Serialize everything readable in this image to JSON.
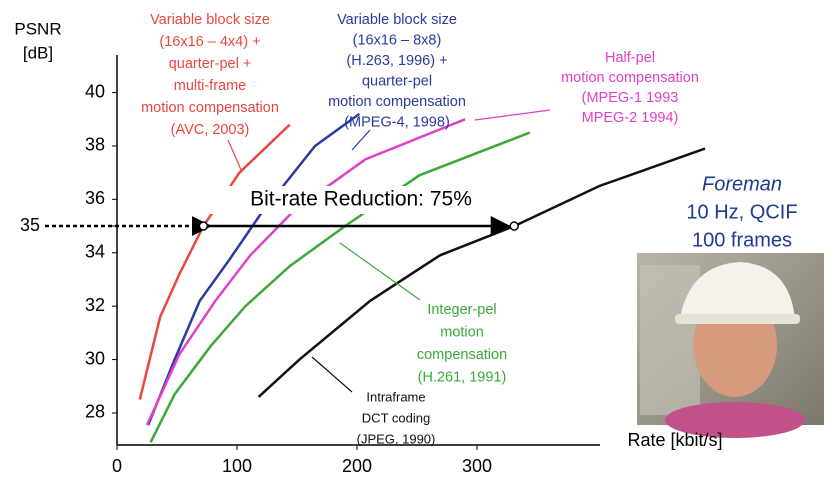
{
  "chart_data": {
    "type": "line",
    "y_label": [
      "PSNR",
      "[dB]"
    ],
    "x_label": "Rate [kbit/s]",
    "xlim": [
      0,
      490
    ],
    "ylim": [
      26.8,
      41.5
    ],
    "xticks": [
      0,
      100,
      200,
      300
    ],
    "yticks": [
      28,
      30,
      32,
      34,
      35,
      36,
      38,
      40
    ],
    "series": [
      {
        "color": "#e8473f",
        "x": [
          19,
          36,
          52,
          72,
          102,
          144
        ],
        "values": [
          28.5,
          31.6,
          33.2,
          35,
          37.0,
          38.8
        ]
      },
      {
        "color": "#2b3aa0",
        "x": [
          26,
          48,
          69,
          93,
          119,
          165,
          202
        ],
        "values": [
          27.55,
          30,
          32.2,
          33.7,
          35.4,
          38.0,
          39.2
        ]
      },
      {
        "color": "#e040c8",
        "x": [
          25,
          52,
          82,
          111,
          148,
          207,
          290
        ],
        "values": [
          27.55,
          30.2,
          32.2,
          33.9,
          35.6,
          37.5,
          39.0
        ]
      },
      {
        "color": "#3aaa35",
        "x": [
          28,
          48,
          78,
          107,
          144,
          190,
          252,
          344
        ],
        "values": [
          26.9,
          28.7,
          30.5,
          32.0,
          33.5,
          35.0,
          36.9,
          38.5
        ]
      },
      {
        "color": "#111111",
        "x": [
          118,
          152,
          211,
          269,
          331,
          402,
          490
        ],
        "values": [
          28.6,
          30,
          32.2,
          33.9,
          35,
          36.5,
          37.9
        ]
      }
    ],
    "reduction_label": "Bit-rate Reduction: 75%",
    "annotations": [
      {
        "color": "#e8473f",
        "lines": [
          "Variable block size",
          "(16x16 – 4x4) +",
          "quarter-pel +",
          "multi-frame",
          "motion compensation",
          "(AVC, 2003)"
        ]
      },
      {
        "color": "#2b3aa0",
        "lines": [
          "Variable block size",
          "(16x16 – 8x8)",
          "(H.263, 1996) +",
          "quarter-pel",
          "motion compensation",
          "(MPEG-4, 1998)"
        ]
      },
      {
        "color": "#e040c8",
        "lines": [
          "Half-pel",
          "motion compensation",
          "(MPEG-1 1993",
          "MPEG-2 1994)"
        ]
      },
      {
        "color": "#3aaa35",
        "lines": [
          "Integer-pel",
          "motion",
          "compensation",
          "(H.261, 1991)"
        ]
      },
      {
        "color": "#111111",
        "lines": [
          "Intraframe",
          "DCT coding",
          "(JPEG, 1990)"
        ]
      }
    ],
    "sequence": {
      "color": "#1f3a93",
      "lines": [
        "Foreman",
        "10 Hz, QCIF",
        "100 frames"
      ]
    }
  }
}
